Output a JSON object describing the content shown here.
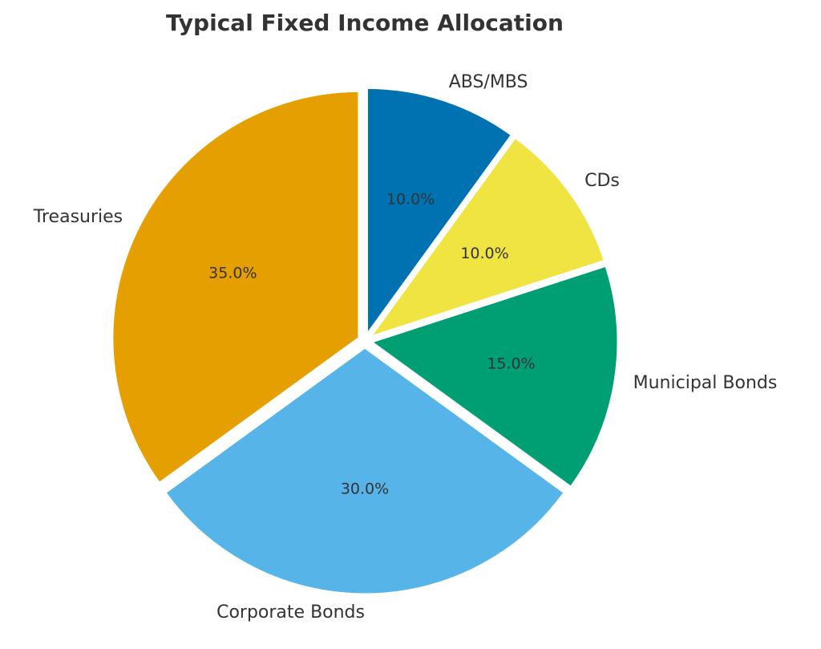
{
  "chart_data": {
    "type": "pie",
    "title": "Typical Fixed Income Allocation",
    "categories": [
      "Treasuries",
      "Corporate Bonds",
      "Municipal Bonds",
      "CDs",
      "ABS/MBS"
    ],
    "values": [
      35,
      30,
      15,
      10,
      10
    ],
    "value_labels": [
      "35.0%",
      "30.0%",
      "15.0%",
      "10.0%",
      "10.0%"
    ],
    "colors": [
      "#E69F00",
      "#56B4E9",
      "#009E73",
      "#F0E442",
      "#0072B2"
    ]
  }
}
